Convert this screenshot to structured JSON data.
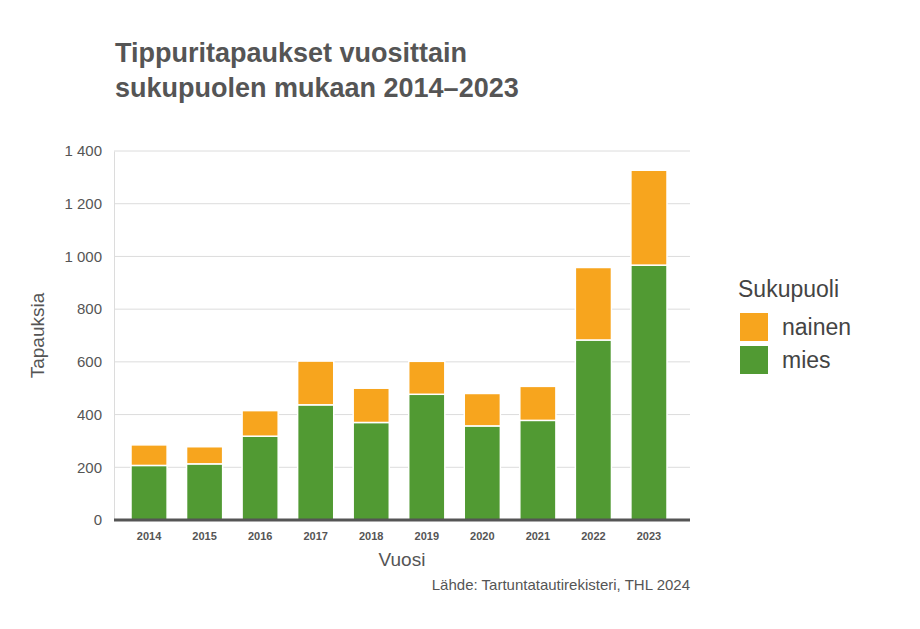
{
  "chart_data": {
    "type": "bar",
    "title": [
      "Tippuritapaukset vuosittain",
      "sukupuolen mukaan 2014–2023"
    ],
    "x_label": "Vuosi",
    "y_label": "Tapauksia",
    "source": "Lähde: Tartuntatautirekisteri, THL 2024",
    "legend_title": "Sukupuoli",
    "categories": [
      "2014",
      "2015",
      "2016",
      "2017",
      "2018",
      "2019",
      "2020",
      "2021",
      "2022",
      "2023"
    ],
    "series": [
      {
        "name": "mies",
        "color": "#519a33",
        "values": [
          207,
          213,
          318,
          437,
          370,
          477,
          357,
          378,
          683,
          967
        ]
      },
      {
        "name": "nainen",
        "color": "#f7a51e",
        "values": [
          78,
          65,
          97,
          166,
          130,
          125,
          123,
          129,
          275,
          360
        ]
      }
    ],
    "stacked": true,
    "ylim": [
      0,
      1400
    ],
    "yticks": [
      0,
      200,
      400,
      600,
      800,
      {
        "value": 1000,
        "label": "1 000"
      },
      {
        "value": 1200,
        "label": "1 200"
      },
      {
        "value": 1400,
        "label": "1 400"
      }
    ],
    "grid": true,
    "legend": "right"
  }
}
